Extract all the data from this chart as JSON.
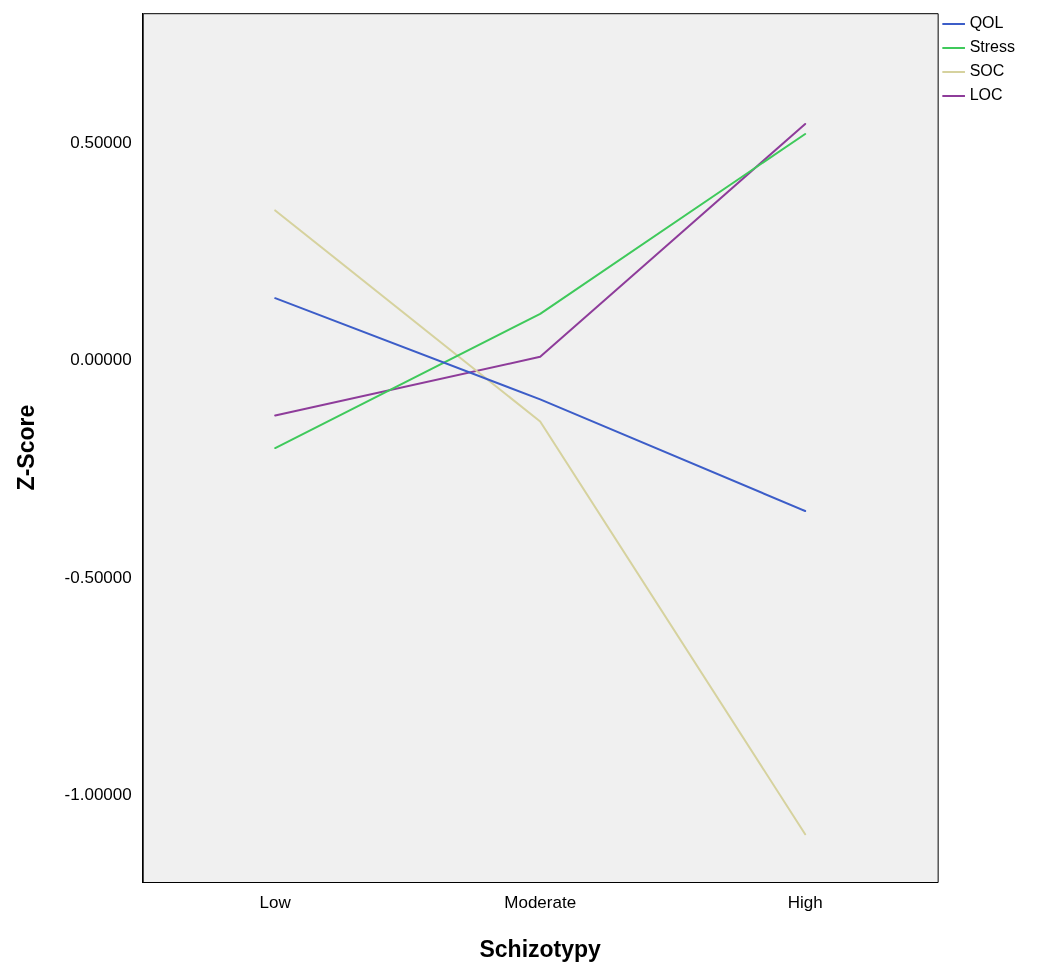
{
  "chart_data": {
    "type": "line",
    "xlabel": "Schizotypy",
    "ylabel": "Z-Score",
    "categories": [
      "Low",
      "Moderate",
      "High"
    ],
    "series": [
      {
        "name": "QOL",
        "color": "#3c5dc8",
        "values": [
          0.144,
          -0.089,
          -0.346
        ]
      },
      {
        "name": "Stress",
        "color": "#3fc95b",
        "values": [
          -0.201,
          0.108,
          0.522
        ]
      },
      {
        "name": "SOC",
        "color": "#d6d29e",
        "values": [
          0.346,
          -0.14,
          -1.09
        ]
      },
      {
        "name": "LOC",
        "color": "#8e3c9a",
        "values": [
          -0.126,
          0.009,
          0.545
        ]
      }
    ],
    "ylim": [
      -1.2,
      0.8
    ],
    "yticks": [
      {
        "value": -1,
        "label": "-1.00000"
      },
      {
        "value": -0.5,
        "label": "-0.50000"
      },
      {
        "value": 0,
        "label": "0.00000"
      },
      {
        "value": 0.5,
        "label": "0.50000"
      }
    ],
    "grid": false,
    "legend": "top right",
    "marker": "none",
    "line_style": "solid"
  }
}
